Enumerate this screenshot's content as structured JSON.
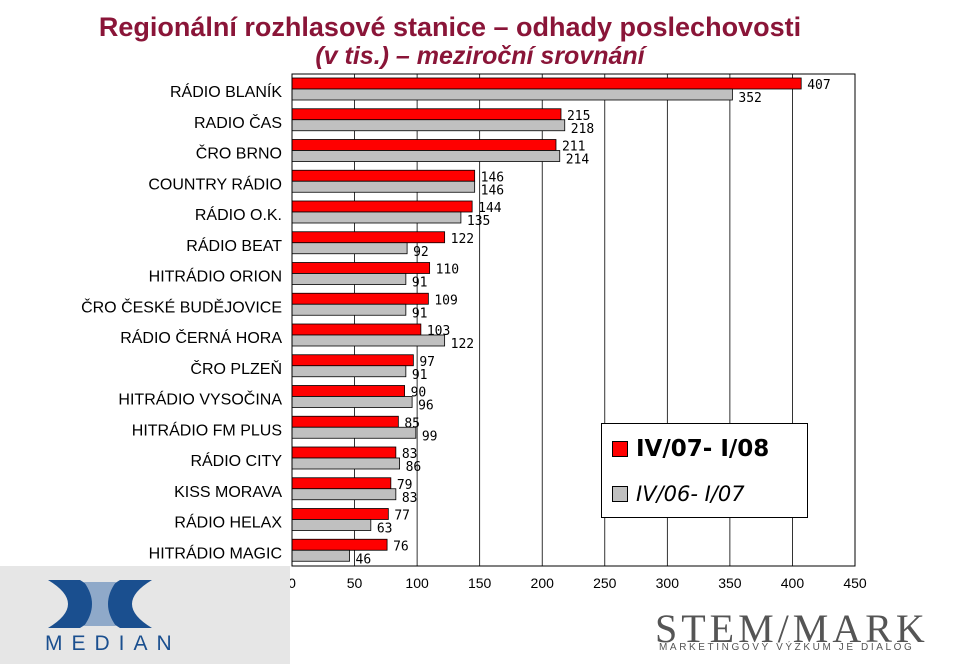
{
  "title_line1": "Regionální rozhlasové stanice – odhady poslechovosti",
  "title_line2": "(v tis.) – meziroční srovnání",
  "chart_data": {
    "type": "bar",
    "orientation": "horizontal",
    "categories": [
      "RÁDIO BLANÍK",
      "RADIO ČAS",
      "ČRO BRNO",
      "COUNTRY RÁDIO",
      "RÁDIO O.K.",
      "RÁDIO BEAT",
      "HITRÁDIO ORION",
      "ČRO ČESKÉ BUDĚJOVICE",
      "RÁDIO ČERNÁ HORA",
      "ČRO PLZEŇ",
      "HITRÁDIO VYSOČINA",
      "HITRÁDIO FM PLUS",
      "RÁDIO CITY",
      "KISS MORAVA",
      "RÁDIO HELAX",
      "HITRÁDIO MAGIC"
    ],
    "series": [
      {
        "name": "IV/07- I/08",
        "color": "#ff0000",
        "values": [
          407,
          215,
          211,
          146,
          144,
          122,
          110,
          109,
          103,
          97,
          90,
          85,
          83,
          79,
          77,
          76
        ]
      },
      {
        "name": "IV/06- I/07",
        "color": "#c0c0c0",
        "values": [
          352,
          218,
          214,
          146,
          135,
          92,
          91,
          91,
          122,
          91,
          96,
          99,
          86,
          83,
          63,
          46
        ]
      }
    ],
    "xlim": [
      0,
      450
    ],
    "xticks": [
      0,
      50,
      100,
      150,
      200,
      250,
      300,
      350,
      400,
      450
    ],
    "gridlines": true,
    "legend_position": "center-right"
  },
  "logos": {
    "median": "MEDIAN",
    "stemmark": "STEM/MARK",
    "stemmark_sub": "MARKETINGOVÝ VÝZKUM JE DIALOG"
  }
}
